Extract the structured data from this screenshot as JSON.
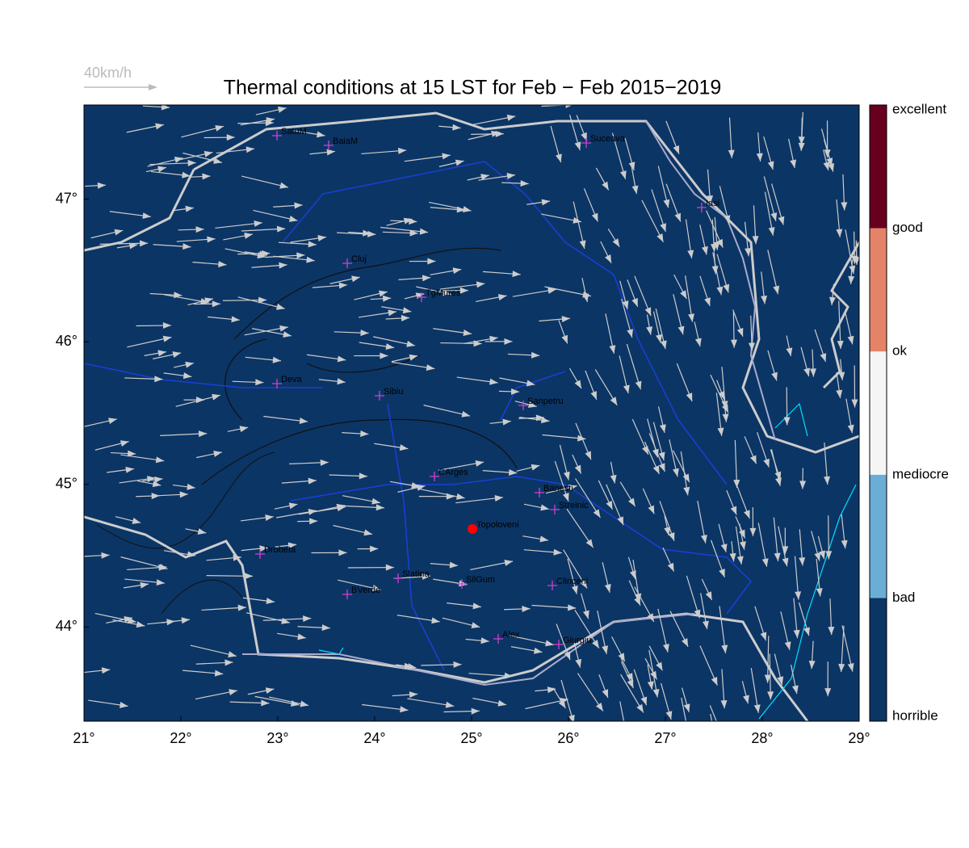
{
  "map": {
    "title": "Thermal conditions at 15 LST for Feb − Feb  2015−2019",
    "arrow_legend": "40km/h",
    "xlim": [
      21,
      29
    ],
    "ylim": [
      43.34,
      47.66
    ],
    "xticks": [
      {
        "value": 21,
        "label": "21°"
      },
      {
        "value": 22,
        "label": "22°"
      },
      {
        "value": 23,
        "label": "23°"
      },
      {
        "value": 24,
        "label": "24°"
      },
      {
        "value": 25,
        "label": "25°"
      },
      {
        "value": 26,
        "label": "26°"
      },
      {
        "value": 27,
        "label": "27°"
      },
      {
        "value": 28,
        "label": "28°"
      },
      {
        "value": 29,
        "label": "29°"
      }
    ],
    "yticks": [
      {
        "value": 44,
        "label": "44°"
      },
      {
        "value": 45,
        "label": "45°"
      },
      {
        "value": 46,
        "label": "46°"
      },
      {
        "value": 47,
        "label": "47°"
      }
    ],
    "colorbar": {
      "labels": [
        "horrible",
        "bad",
        "mediocre",
        "ok",
        "good",
        "excellent"
      ],
      "colors": [
        "#0b3565",
        "#6aaed6",
        "#f5f5f5",
        "#e58368",
        "#67001f"
      ]
    },
    "cities": [
      "SatuM",
      "BaiaM",
      "Suceava",
      "Iasi",
      "Cluj",
      "TgMures",
      "Deva",
      "Sibiu",
      "Sanpetru",
      "CArges",
      "Banesti",
      "Streinic",
      "Topoloveni",
      "Drobeta",
      "Slatina",
      "SilGum",
      "Clinceni",
      "BVerde",
      "Alex",
      "Giurgiu"
    ]
  }
}
